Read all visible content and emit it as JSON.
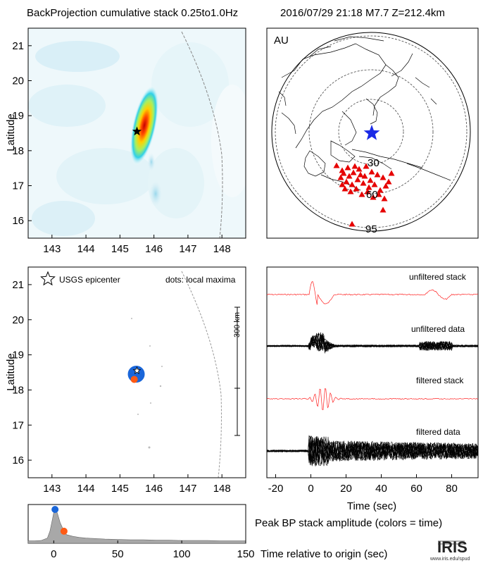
{
  "header": {
    "title": "BackProjection cumulative stack 0.25to1.0Hz",
    "event": "2016/07/29 21:18   M7.7  Z=212.4km"
  },
  "map_panel": {
    "network": "AU",
    "distance_labels": [
      "30",
      "60",
      "95"
    ]
  },
  "epicenter_panel": {
    "legend_epicenter": "USGS epicenter",
    "legend_dots": "dots: local maxima",
    "scale_label": "300 km"
  },
  "traces": {
    "labels": [
      "unfiltered stack",
      "unfiltered data",
      "filtered stack",
      "filtered data"
    ]
  },
  "bottom_panel": {
    "title": "Peak BP stack amplitude (colors = time)",
    "xlabel": "Time relative to origin (sec)"
  },
  "logo": {
    "name": "IRIS",
    "url": "www.iris.edu/spud"
  },
  "colors": {
    "epicenter_blue": "#1a66d9",
    "maxima_orange": "#ff5a14",
    "station_red": "#e60000",
    "stack_red": "#ff2020",
    "area_gray": "#a8a8a8",
    "map_star": "#1a2ae6"
  },
  "chart_data": [
    {
      "type": "heatmap",
      "title": "BackProjection cumulative stack 0.25to1.0Hz",
      "xlabel": "",
      "ylabel": "Latitude",
      "xlim": [
        142.3,
        148.7
      ],
      "ylim": [
        15.5,
        21.5
      ],
      "xticks": [
        143,
        144,
        145,
        146,
        147,
        148
      ],
      "yticks": [
        16,
        17,
        18,
        19,
        20,
        21
      ],
      "epicenter": {
        "lon": 145.5,
        "lat": 18.55
      }
    },
    {
      "type": "scatter",
      "ylabel": "Latitude",
      "xlim": [
        142.3,
        148.7
      ],
      "ylim": [
        15.5,
        21.5
      ],
      "xticks": [
        143,
        144,
        145,
        146,
        147,
        148
      ],
      "yticks": [
        16,
        17,
        18,
        19,
        20,
        21
      ],
      "epicenter": {
        "lon": 145.5,
        "lat": 18.55
      },
      "maxima": [
        {
          "time": 2,
          "lon": 145.48,
          "lat": 18.45
        },
        {
          "time": 8,
          "lon": 145.42,
          "lat": 18.3
        }
      ]
    },
    {
      "type": "line",
      "xlabel": "Time (sec)",
      "xlim": [
        -25,
        95
      ],
      "xticks": [
        -20,
        0,
        20,
        40,
        60,
        80
      ]
    },
    {
      "type": "area",
      "xlim": [
        -20,
        150
      ],
      "xticks": [
        0,
        50,
        100,
        150
      ],
      "x": [
        -20,
        -15,
        -10,
        -5,
        -3,
        -1,
        0,
        1,
        2,
        3,
        5,
        8,
        10,
        15,
        20,
        25,
        30,
        40,
        50,
        60,
        70,
        80,
        90,
        100,
        110,
        120,
        130,
        140,
        150
      ],
      "y": [
        0.07,
        0.07,
        0.08,
        0.15,
        0.35,
        0.7,
        0.9,
        0.98,
        0.95,
        0.85,
        0.6,
        0.35,
        0.25,
        0.2,
        0.17,
        0.15,
        0.14,
        0.12,
        0.11,
        0.1,
        0.1,
        0.09,
        0.09,
        0.08,
        0.08,
        0.08,
        0.07,
        0.07,
        0.07
      ],
      "markers": [
        {
          "time": 1,
          "color": "#1a66d9"
        },
        {
          "time": 8,
          "color": "#ff5a14"
        }
      ]
    }
  ]
}
